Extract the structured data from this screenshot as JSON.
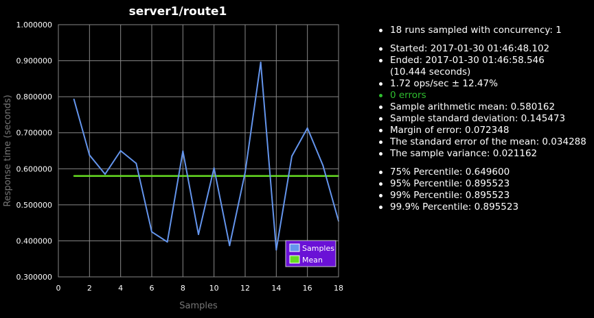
{
  "chart_data": {
    "type": "line",
    "title": "server1/route1",
    "xlabel": "Samples",
    "ylabel": "Response time (seconds)",
    "xlim": [
      0,
      18
    ],
    "ylim": [
      0.3,
      1.0
    ],
    "x_ticks": [
      "0",
      "2",
      "4",
      "6",
      "8",
      "10",
      "12",
      "14",
      "16",
      "18"
    ],
    "y_ticks": [
      "0.300000",
      "0.400000",
      "0.500000",
      "0.600000",
      "0.700000",
      "0.800000",
      "0.900000",
      "1.000000"
    ],
    "grid": true,
    "legend_position": "bottom-right",
    "series": [
      {
        "name": "Samples",
        "color": "#6495ed",
        "x": [
          1,
          2,
          3,
          4,
          5,
          6,
          7,
          8,
          9,
          10,
          11,
          12,
          13,
          14,
          15,
          16,
          17,
          18
        ],
        "y": [
          0.793,
          0.638,
          0.585,
          0.65,
          0.615,
          0.425,
          0.397,
          0.649,
          0.418,
          0.602,
          0.387,
          0.59,
          0.895523,
          0.375,
          0.635,
          0.713,
          0.609,
          0.455
        ]
      },
      {
        "name": "Mean",
        "color": "#66dd22",
        "x": [
          1,
          18
        ],
        "y": [
          0.580162,
          0.580162
        ]
      }
    ]
  },
  "stats": {
    "group1": [
      "18 runs sampled with concurrency: 1"
    ],
    "group2": [
      "Started: 2017-01-30 01:46:48.102",
      "Ended: 2017-01-30 01:46:58.546",
      "(10.444 seconds)",
      "1.72 ops/sec ± 12.47%",
      "0 errors",
      "Sample arithmetic mean: 0.580162",
      "Sample standard deviation: 0.145473",
      "Margin of error: 0.072348",
      "The standard error of the mean: 0.034288",
      "The sample variance: 0.021162"
    ],
    "group3": [
      "75% Percentile: 0.649600",
      "95% Percentile: 0.895523",
      "99% Percentile: 0.895523",
      "99.9% Percentile: 0.895523"
    ]
  },
  "colors": {
    "legend_bg": "#6a11d6",
    "errors_text": "#2fbf2f"
  }
}
